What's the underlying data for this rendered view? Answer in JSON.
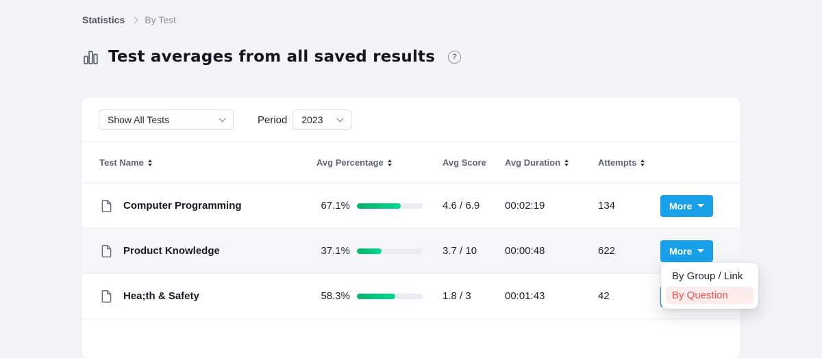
{
  "breadcrumb": {
    "items": [
      {
        "label": "Statistics"
      },
      {
        "label": "By Test"
      }
    ]
  },
  "page": {
    "title": "Test averages from all saved results"
  },
  "filters": {
    "test_select_value": "Show All Tests",
    "period_label": "Period",
    "period_select_value": "2023"
  },
  "table": {
    "columns": [
      {
        "label": "Test Name",
        "sortable": true
      },
      {
        "label": "Avg Percentage",
        "sortable": true
      },
      {
        "label": "Avg Score",
        "sortable": false
      },
      {
        "label": "Avg Duration",
        "sortable": true
      },
      {
        "label": "Attempts",
        "sortable": true
      }
    ],
    "more_label": "More",
    "rows": [
      {
        "name": "Computer Programming",
        "avg_percentage": "67.1%",
        "avg_percentage_value": 67.1,
        "avg_score": "4.6 / 6.9",
        "avg_duration": "00:02:19",
        "attempts": "134"
      },
      {
        "name": "Product Knowledge",
        "avg_percentage": "37.1%",
        "avg_percentage_value": 37.1,
        "avg_score": "3.7 / 10",
        "avg_duration": "00:00:48",
        "attempts": "622"
      },
      {
        "name": "Hea;th & Safety",
        "avg_percentage": "58.3%",
        "avg_percentage_value": 58.3,
        "avg_score": "1.8 / 3",
        "avg_duration": "00:01:43",
        "attempts": "42"
      }
    ]
  },
  "menu": {
    "items": [
      {
        "label": "By Group / Link",
        "active": false
      },
      {
        "label": "By Question",
        "active": true
      }
    ]
  },
  "colors": {
    "accent": "#18a0e8",
    "progress_start": "#0ab168",
    "progress_end": "#00dc92",
    "danger": "#f4514f",
    "danger_bg": "#fdecec"
  }
}
